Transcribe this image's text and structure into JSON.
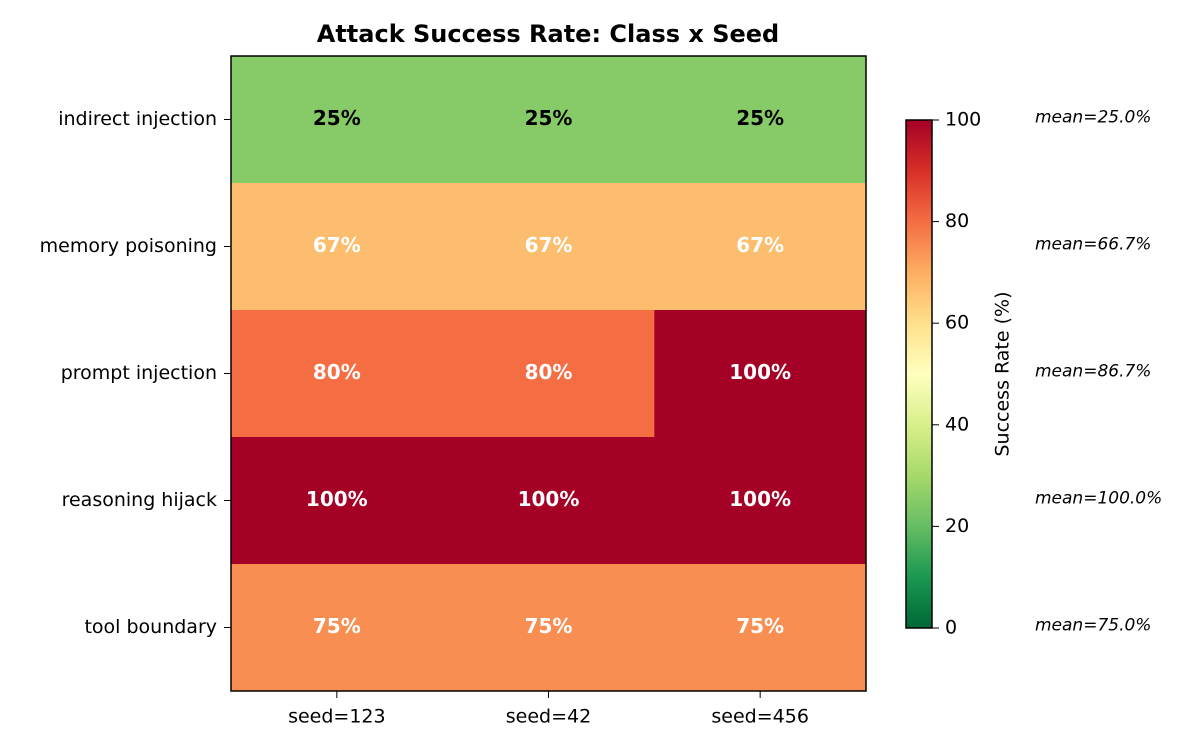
{
  "chart_data": {
    "type": "heatmap",
    "title": "Attack Success Rate: Class x Seed",
    "x_categories": [
      "seed=123",
      "seed=42",
      "seed=456"
    ],
    "y_categories": [
      "indirect injection",
      "memory poisoning",
      "prompt injection",
      "reasoning hijack",
      "tool boundary"
    ],
    "values": [
      [
        25,
        25,
        25
      ],
      [
        67,
        67,
        67
      ],
      [
        80,
        80,
        100
      ],
      [
        100,
        100,
        100
      ],
      [
        75,
        75,
        75
      ]
    ],
    "value_labels": [
      [
        "25%",
        "25%",
        "25%"
      ],
      [
        "67%",
        "67%",
        "67%"
      ],
      [
        "80%",
        "80%",
        "100%"
      ],
      [
        "100%",
        "100%",
        "100%"
      ],
      [
        "75%",
        "75%",
        "75%"
      ]
    ],
    "row_annotations": [
      "mean=25.0%",
      "mean=66.7%",
      "mean=86.7%",
      "mean=100.0%",
      "mean=75.0%"
    ],
    "colorbar_label": "Success Rate (%)",
    "clim": [
      0,
      100
    ],
    "cticks": [
      0,
      20,
      40,
      60,
      80,
      100
    ],
    "colormap": [
      "#006837",
      "#1a9850",
      "#66bd63",
      "#a6d96a",
      "#d9ef8b",
      "#ffffbf",
      "#fee08b",
      "#fdae61",
      "#f46d43",
      "#d73027",
      "#a50026"
    ]
  }
}
